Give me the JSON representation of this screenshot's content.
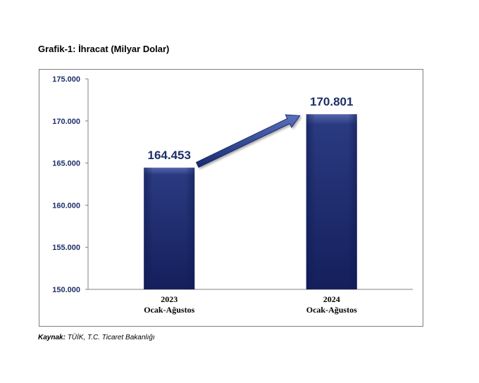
{
  "page": {
    "title": "Grafik-1: İhracat (Milyar Dolar)",
    "source_label": "Kaynak:",
    "source_text": "TÜİK, T.C. Ticaret Bakanlığı"
  },
  "colors": {
    "bar_dark": "#1b2a6b",
    "bar_light": "#4a5ea8",
    "axis": "#808080",
    "tick_text": "#1f2f6a",
    "value_label": "#1f2f6a",
    "arrow": "#233a82"
  },
  "chart_data": {
    "type": "bar",
    "title": "Grafik-1: İhracat (Milyar Dolar)",
    "xlabel": "",
    "ylabel": "",
    "categories": [
      [
        "2023",
        "Ocak-Ağustos"
      ],
      [
        "2024",
        "Ocak-Ağustos"
      ]
    ],
    "values": [
      164453,
      170801
    ],
    "value_labels": [
      "164.453",
      "170.801"
    ],
    "ylim": [
      150000,
      175000
    ],
    "yticks": [
      150000,
      155000,
      160000,
      165000,
      170000,
      175000
    ],
    "ytick_labels": [
      "150.000",
      "155.000",
      "160.000",
      "165.000",
      "170.000",
      "175.000"
    ],
    "grid": false,
    "legend": "none",
    "annotation": "arrow from 2023 value to 2024 value"
  }
}
